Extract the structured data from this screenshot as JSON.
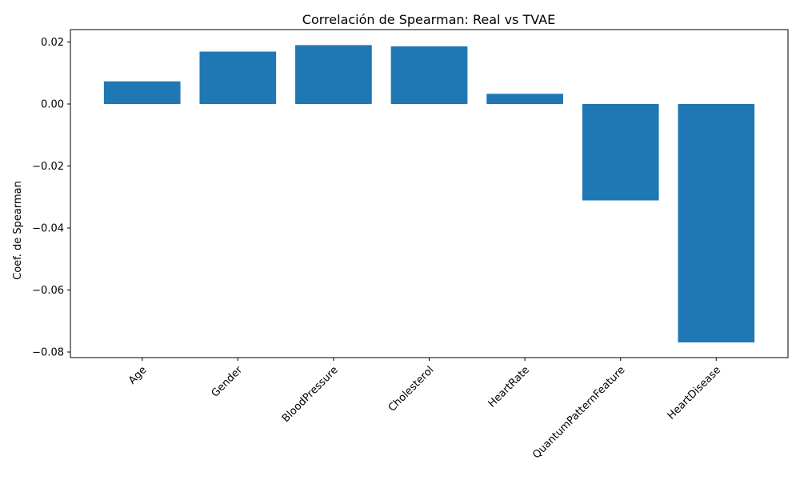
{
  "chart_data": {
    "type": "bar",
    "title": "Correlación de Spearman: Real vs TVAE",
    "xlabel": "",
    "ylabel": "Coef. de Spearman",
    "categories": [
      "Age",
      "Gender",
      "BloodPressure",
      "Cholesterol",
      "HeartRate",
      "QuantumPatternFeature",
      "HeartDisease"
    ],
    "values": [
      0.0073,
      0.0169,
      0.019,
      0.0186,
      0.0033,
      -0.0311,
      -0.0769
    ],
    "yticks": [
      0.02,
      0.0,
      -0.02,
      -0.04,
      -0.06,
      -0.08
    ],
    "ytick_labels": [
      "0.02",
      "0.00",
      "−0.02",
      "−0.04",
      "−0.06",
      "−0.08"
    ],
    "ylim": [
      -0.0818,
      0.024
    ],
    "bar_color": "#1f77b4",
    "grid": false,
    "legend": "none"
  }
}
